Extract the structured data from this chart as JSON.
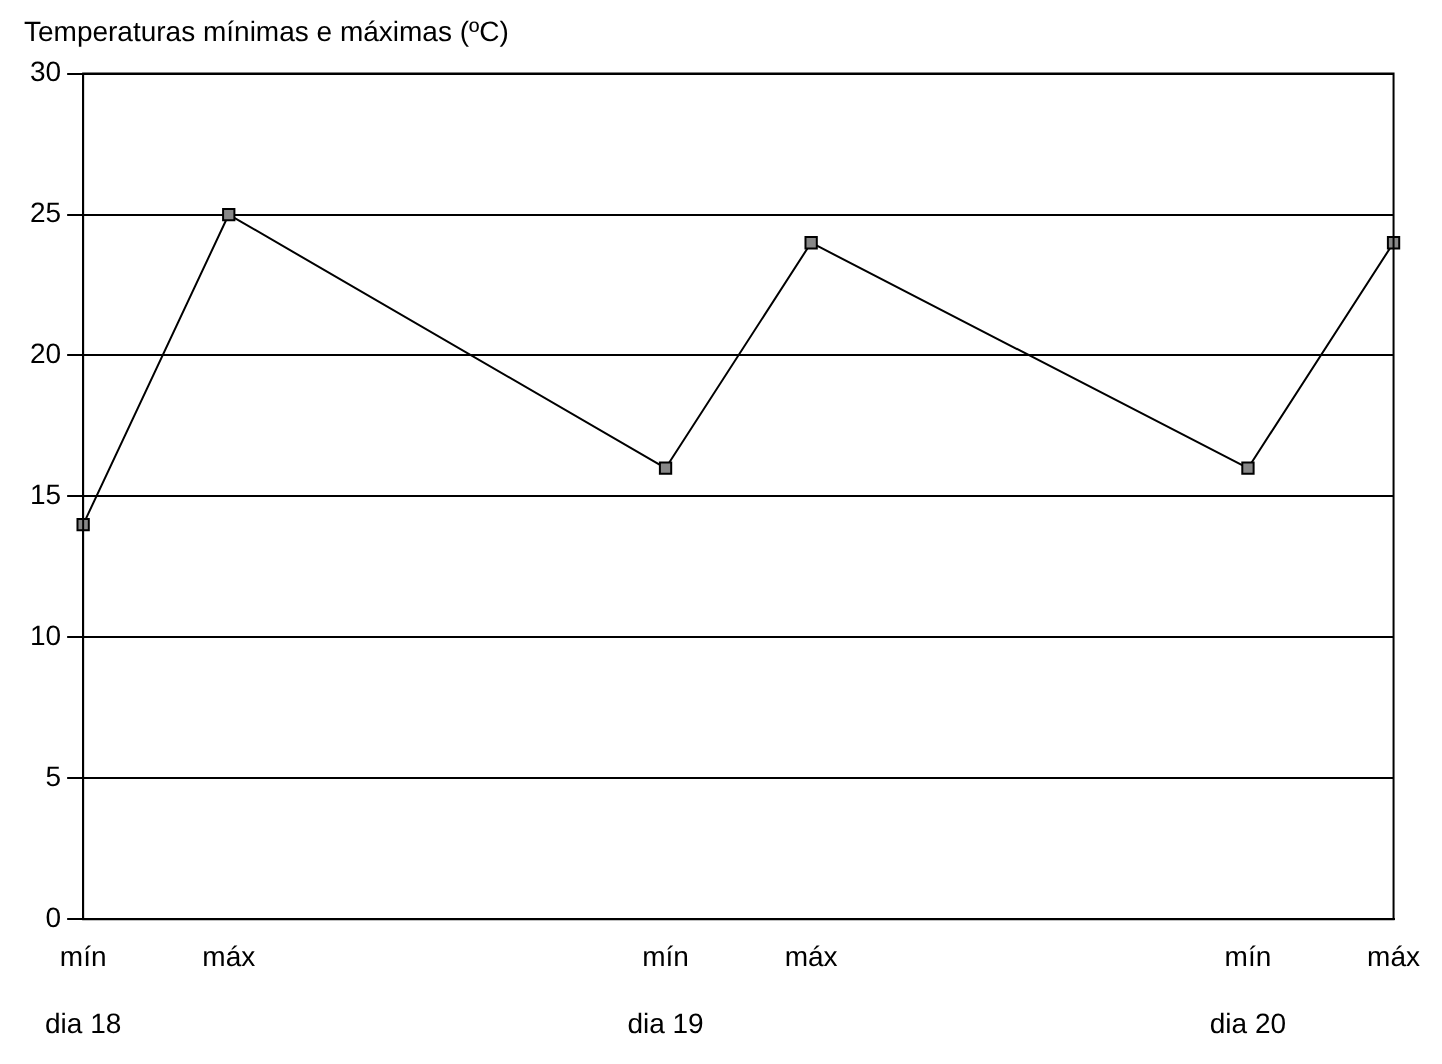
{
  "chart_data": {
    "type": "line",
    "title": "Temperaturas mínimas e máximas (ºC)",
    "categories": [
      "mín\n\ndia 18",
      "máx",
      null,
      null,
      "mín\n\ndia 19",
      "máx",
      null,
      null,
      "mín\n\ndia 20",
      "máx"
    ],
    "series": [
      {
        "color": "#000000",
        "values": [
          14,
          25,
          null,
          null,
          16,
          24,
          null,
          null,
          16,
          24
        ]
      }
    ],
    "ylim": [
      0,
      30
    ],
    "yticks": [
      0,
      5,
      10,
      15,
      20,
      25,
      30
    ],
    "grid": "y",
    "marker": "square",
    "line_style": "solid",
    "legend": false
  }
}
